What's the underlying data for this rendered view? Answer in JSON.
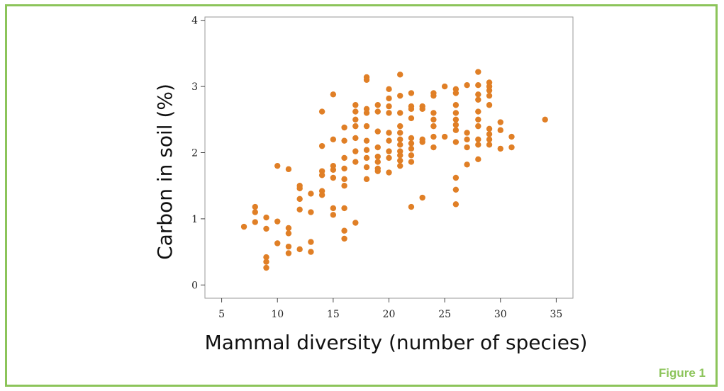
{
  "caption": "Figure 1",
  "colors": {
    "frame": "#8cc45a",
    "points": "#e07f26",
    "caption": "#8cc45a"
  },
  "chart_data": {
    "type": "scatter",
    "title": "",
    "xlabel": "Mammal diversity (number of species)",
    "ylabel": "Carbon in soil (%)",
    "xlim": [
      3.5,
      36.5
    ],
    "ylim": [
      -0.2,
      4.05
    ],
    "xticks": [
      5,
      10,
      15,
      20,
      25,
      30,
      35
    ],
    "yticks": [
      0,
      1,
      2,
      3,
      4
    ],
    "grid": false,
    "legend": "none",
    "series": [
      {
        "name": "",
        "points": [
          [
            7,
            0.88
          ],
          [
            8,
            0.95
          ],
          [
            8,
            1.1
          ],
          [
            8,
            1.18
          ],
          [
            9,
            1.02
          ],
          [
            9,
            0.85
          ],
          [
            9,
            0.42
          ],
          [
            9,
            0.35
          ],
          [
            9,
            0.26
          ],
          [
            10,
            1.8
          ],
          [
            10,
            0.96
          ],
          [
            10,
            0.63
          ],
          [
            11,
            1.75
          ],
          [
            11,
            0.86
          ],
          [
            11,
            0.78
          ],
          [
            11,
            0.58
          ],
          [
            11,
            0.48
          ],
          [
            12,
            1.5
          ],
          [
            12,
            1.46
          ],
          [
            12,
            1.3
          ],
          [
            12,
            1.14
          ],
          [
            12,
            0.54
          ],
          [
            13,
            1.38
          ],
          [
            13,
            1.1
          ],
          [
            13,
            0.65
          ],
          [
            13,
            0.5
          ],
          [
            14,
            2.62
          ],
          [
            14,
            2.1
          ],
          [
            14,
            1.72
          ],
          [
            14,
            1.66
          ],
          [
            14,
            1.42
          ],
          [
            14,
            1.36
          ],
          [
            15,
            2.88
          ],
          [
            15,
            2.2
          ],
          [
            15,
            1.8
          ],
          [
            15,
            1.74
          ],
          [
            15,
            1.62
          ],
          [
            15,
            1.16
          ],
          [
            15,
            1.06
          ],
          [
            16,
            2.38
          ],
          [
            16,
            2.18
          ],
          [
            16,
            1.92
          ],
          [
            16,
            1.76
          ],
          [
            16,
            1.6
          ],
          [
            16,
            1.5
          ],
          [
            16,
            1.16
          ],
          [
            16,
            0.82
          ],
          [
            16,
            0.7
          ],
          [
            17,
            2.72
          ],
          [
            17,
            2.62
          ],
          [
            17,
            2.5
          ],
          [
            17,
            2.4
          ],
          [
            17,
            2.22
          ],
          [
            17,
            2.02
          ],
          [
            17,
            1.86
          ],
          [
            17,
            0.94
          ],
          [
            18,
            3.14
          ],
          [
            18,
            3.1
          ],
          [
            18,
            2.66
          ],
          [
            18,
            2.6
          ],
          [
            18,
            2.4
          ],
          [
            18,
            2.18
          ],
          [
            18,
            2.04
          ],
          [
            18,
            1.92
          ],
          [
            18,
            1.78
          ],
          [
            18,
            1.6
          ],
          [
            19,
            2.72
          ],
          [
            19,
            2.62
          ],
          [
            19,
            2.32
          ],
          [
            19,
            2.08
          ],
          [
            19,
            1.94
          ],
          [
            19,
            1.86
          ],
          [
            19,
            1.76
          ],
          [
            19,
            1.72
          ],
          [
            20,
            2.96
          ],
          [
            20,
            2.82
          ],
          [
            20,
            2.7
          ],
          [
            20,
            2.6
          ],
          [
            20,
            2.3
          ],
          [
            20,
            2.18
          ],
          [
            20,
            2.02
          ],
          [
            20,
            1.92
          ],
          [
            20,
            1.7
          ],
          [
            21,
            3.18
          ],
          [
            21,
            2.86
          ],
          [
            21,
            2.6
          ],
          [
            21,
            2.4
          ],
          [
            21,
            2.3
          ],
          [
            21,
            2.2
          ],
          [
            21,
            2.12
          ],
          [
            21,
            2.02
          ],
          [
            21,
            1.96
          ],
          [
            21,
            1.88
          ],
          [
            21,
            1.8
          ],
          [
            22,
            2.9
          ],
          [
            22,
            2.7
          ],
          [
            22,
            2.66
          ],
          [
            22,
            2.52
          ],
          [
            22,
            2.22
          ],
          [
            22,
            2.14
          ],
          [
            22,
            2.06
          ],
          [
            22,
            1.96
          ],
          [
            22,
            1.86
          ],
          [
            22,
            1.18
          ],
          [
            23,
            2.7
          ],
          [
            23,
            2.66
          ],
          [
            23,
            2.2
          ],
          [
            23,
            2.16
          ],
          [
            23,
            1.32
          ],
          [
            24,
            2.9
          ],
          [
            24,
            2.86
          ],
          [
            24,
            2.6
          ],
          [
            24,
            2.5
          ],
          [
            24,
            2.4
          ],
          [
            24,
            2.24
          ],
          [
            24,
            2.08
          ],
          [
            25,
            3.0
          ],
          [
            25,
            2.24
          ],
          [
            26,
            2.96
          ],
          [
            26,
            2.9
          ],
          [
            26,
            2.72
          ],
          [
            26,
            2.6
          ],
          [
            26,
            2.5
          ],
          [
            26,
            2.42
          ],
          [
            26,
            2.34
          ],
          [
            26,
            2.16
          ],
          [
            26,
            1.62
          ],
          [
            26,
            1.44
          ],
          [
            26,
            1.22
          ],
          [
            27,
            3.02
          ],
          [
            27,
            2.3
          ],
          [
            27,
            2.2
          ],
          [
            27,
            2.08
          ],
          [
            27,
            1.82
          ],
          [
            28,
            3.22
          ],
          [
            28,
            3.02
          ],
          [
            28,
            2.88
          ],
          [
            28,
            2.8
          ],
          [
            28,
            2.62
          ],
          [
            28,
            2.5
          ],
          [
            28,
            2.4
          ],
          [
            28,
            2.2
          ],
          [
            28,
            2.12
          ],
          [
            28,
            1.9
          ],
          [
            29,
            3.06
          ],
          [
            29,
            3.0
          ],
          [
            29,
            2.94
          ],
          [
            29,
            2.86
          ],
          [
            29,
            2.72
          ],
          [
            29,
            2.36
          ],
          [
            29,
            2.28
          ],
          [
            29,
            2.2
          ],
          [
            29,
            2.12
          ],
          [
            30,
            2.46
          ],
          [
            30,
            2.34
          ],
          [
            30,
            2.06
          ],
          [
            31,
            2.24
          ],
          [
            31,
            2.08
          ],
          [
            34,
            2.5
          ]
        ]
      }
    ]
  }
}
